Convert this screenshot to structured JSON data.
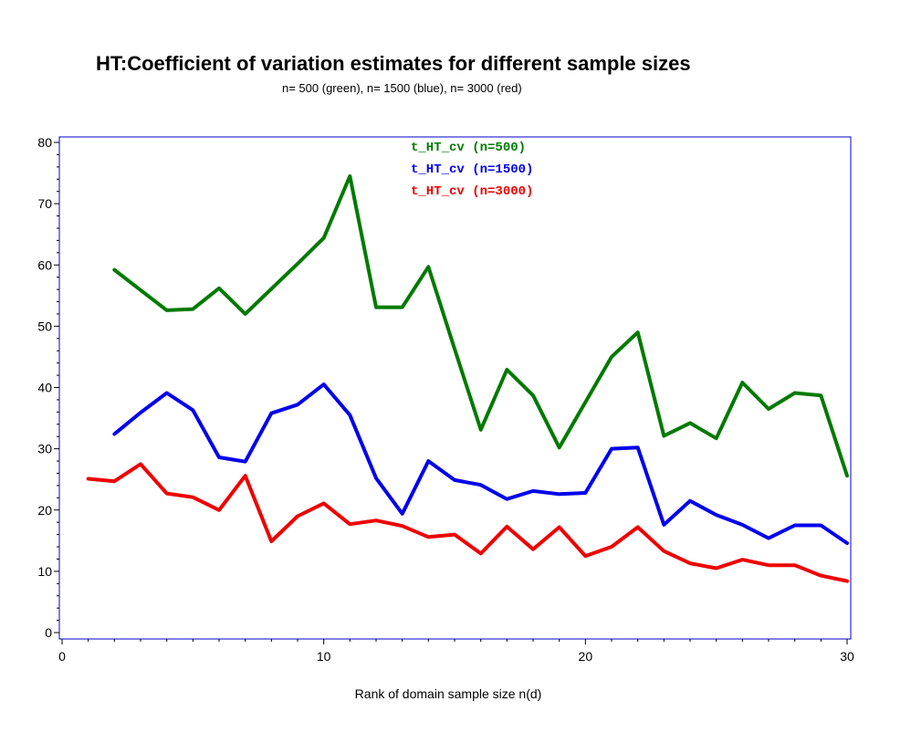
{
  "chart_data": {
    "type": "line",
    "title": "HT:Coefficient of variation estimates for different sample sizes",
    "subtitle": "n= 500 (green), n= 1500 (blue), n= 3000 (red)",
    "xlabel": "Rank of domain sample size n(d)",
    "ylabel": "",
    "xlim": [
      0,
      30
    ],
    "ylim": [
      0,
      80
    ],
    "x_ticks": [
      0,
      10,
      20,
      30
    ],
    "y_ticks": [
      0,
      10,
      20,
      30,
      40,
      50,
      60,
      70,
      80
    ],
    "grid": false,
    "legend_position": "top-center",
    "series": [
      {
        "name": "t_HT_cv (n=500)",
        "color": "#007a00",
        "x": [
          2,
          3,
          4,
          5,
          6,
          7,
          8,
          9,
          10,
          11,
          12,
          13,
          14,
          15,
          16,
          17,
          18,
          19,
          20,
          21,
          22,
          23,
          24,
          25,
          26,
          27,
          28,
          29,
          30
        ],
        "values": [
          59.2,
          55.9,
          52.6,
          52.8,
          56.2,
          52.0,
          56.1,
          60.2,
          64.4,
          74.5,
          53.1,
          53.1,
          59.7,
          46.3,
          33.1,
          42.9,
          38.7,
          30.2,
          37.6,
          45.0,
          49.0,
          32.1,
          34.2,
          31.7,
          40.8,
          36.5,
          39.1,
          38.7,
          25.6
        ]
      },
      {
        "name": "t_HT_cv (n=1500)",
        "color": "#0000ee",
        "x": [
          2,
          3,
          4,
          5,
          6,
          7,
          8,
          9,
          10,
          11,
          12,
          13,
          14,
          15,
          16,
          17,
          18,
          19,
          20,
          21,
          22,
          23,
          24,
          25,
          26,
          27,
          28,
          29,
          30
        ],
        "values": [
          32.4,
          35.9,
          39.1,
          36.3,
          28.6,
          27.9,
          35.8,
          37.2,
          40.5,
          35.5,
          25.2,
          19.4,
          28.0,
          24.9,
          24.1,
          21.8,
          23.1,
          22.6,
          22.8,
          30.0,
          30.2,
          17.6,
          21.5,
          19.2,
          17.6,
          15.4,
          17.5,
          17.5,
          14.6
        ]
      },
      {
        "name": "t_HT_cv (n=3000)",
        "color": "#ee0000",
        "x": [
          1,
          2,
          3,
          4,
          5,
          6,
          7,
          8,
          9,
          10,
          11,
          12,
          13,
          14,
          15,
          16,
          17,
          18,
          19,
          20,
          21,
          22,
          23,
          24,
          25,
          26,
          27,
          28,
          29,
          30
        ],
        "values": [
          25.1,
          24.7,
          27.5,
          22.7,
          22.1,
          20.0,
          25.6,
          14.9,
          19.0,
          21.1,
          17.7,
          18.3,
          17.4,
          15.6,
          16.0,
          12.9,
          17.3,
          13.6,
          17.2,
          12.5,
          14.0,
          17.2,
          13.3,
          11.3,
          10.5,
          11.9,
          11.0,
          11.0,
          9.3,
          8.4
        ]
      }
    ]
  }
}
